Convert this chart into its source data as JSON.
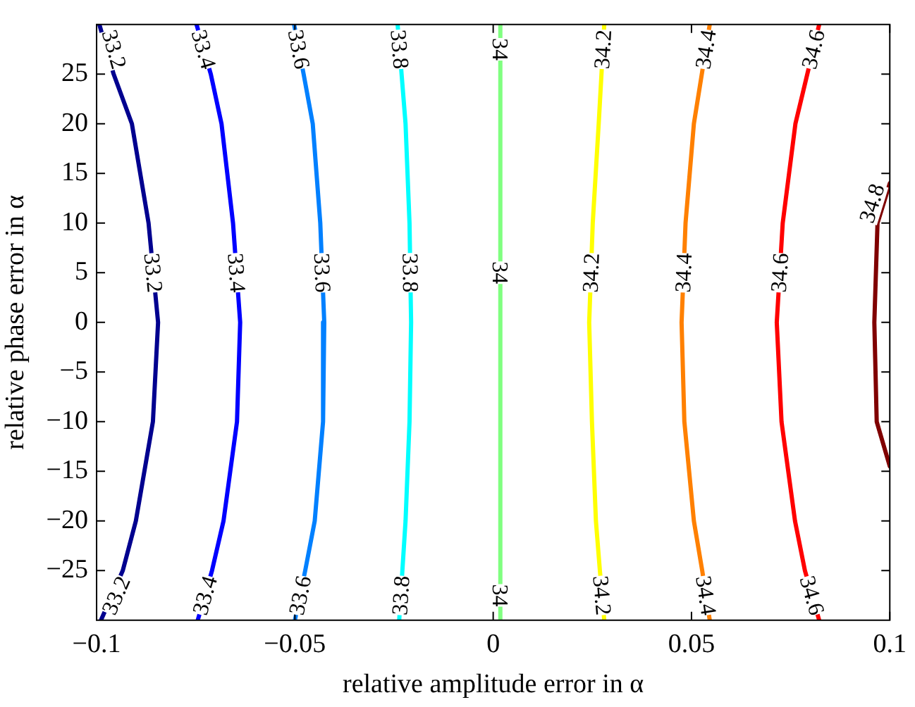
{
  "chart_data": {
    "type": "line",
    "xlabel": "relative amplitude error in α",
    "ylabel": "relative phase error in α",
    "xlim": [
      -0.1,
      0.1
    ],
    "xticks": [
      -0.1,
      -0.05,
      0,
      0.05,
      0.1
    ],
    "ylim": [
      -30,
      30
    ],
    "yticks": [
      -25,
      -20,
      -15,
      -10,
      -5,
      0,
      5,
      10,
      15,
      20,
      25
    ],
    "grid": false,
    "legend": false,
    "marker": "none",
    "line_style": "solid",
    "series": [
      {
        "name": "33.2",
        "color": "#00008f",
        "x": [
          -0.0993,
          -0.0957,
          -0.0911,
          -0.0869,
          -0.0845,
          -0.0858,
          -0.0901,
          -0.0934,
          -0.0989
        ],
        "values": [
          30,
          25,
          20,
          10,
          0,
          -10,
          -20,
          -25,
          -30
        ]
      },
      {
        "name": "33.4",
        "color": "#0000ff",
        "x": [
          -0.0748,
          -0.0712,
          -0.0685,
          -0.0656,
          -0.0638,
          -0.0646,
          -0.068,
          -0.0709,
          -0.0745
        ],
        "values": [
          30,
          25,
          20,
          10,
          0,
          -10,
          -20,
          -25,
          -30
        ]
      },
      {
        "name": "33.6",
        "color": "#0080ff",
        "x": [
          -0.0502,
          -0.0478,
          -0.0455,
          -0.0436,
          -0.0426,
          -0.0429,
          -0.045,
          -0.0474,
          -0.05
        ],
        "values": [
          30,
          25,
          20,
          10,
          0,
          -10,
          -20,
          -25,
          -30
        ]
      },
      {
        "name": "33.8",
        "color": "#00ffff",
        "x": [
          -0.0241,
          -0.0231,
          -0.0221,
          -0.0211,
          -0.0207,
          -0.0211,
          -0.0221,
          -0.0229,
          -0.0237
        ],
        "values": [
          30,
          25,
          20,
          10,
          0,
          -10,
          -20,
          -25,
          -30
        ]
      },
      {
        "name": "34",
        "color": "#80ff80",
        "x": [
          0.0018,
          0.0018,
          0.0018,
          0.0018,
          0.0018,
          0.0018,
          0.0018,
          0.0018,
          0.0018
        ],
        "values": [
          30,
          25,
          20,
          10,
          0,
          -10,
          -20,
          -25,
          -30
        ]
      },
      {
        "name": "34.2",
        "color": "#ffff00",
        "x": [
          0.028,
          0.0273,
          0.0266,
          0.0251,
          0.0242,
          0.0249,
          0.0259,
          0.0269,
          0.028
        ],
        "values": [
          30,
          25,
          20,
          10,
          0,
          -10,
          -20,
          -25,
          -30
        ]
      },
      {
        "name": "34.4",
        "color": "#ff8000",
        "x": [
          0.0546,
          0.0526,
          0.0506,
          0.0485,
          0.0475,
          0.0482,
          0.0506,
          0.0527,
          0.0546
        ],
        "values": [
          30,
          25,
          20,
          10,
          0,
          -10,
          -20,
          -25,
          -30
        ]
      },
      {
        "name": "34.6",
        "color": "#ff0000",
        "x": [
          0.0822,
          0.0792,
          0.0762,
          0.073,
          0.0715,
          0.0727,
          0.0761,
          0.0786,
          0.0822
        ],
        "values": [
          30,
          25,
          20,
          10,
          0,
          -10,
          -20,
          -25,
          -30
        ]
      },
      {
        "name": "34.8",
        "color": "#800000",
        "x": [
          0.1,
          0.0969,
          0.0961,
          0.0967,
          0.1
        ],
        "values": [
          14,
          10,
          0,
          -10,
          -14.5
        ]
      }
    ]
  }
}
